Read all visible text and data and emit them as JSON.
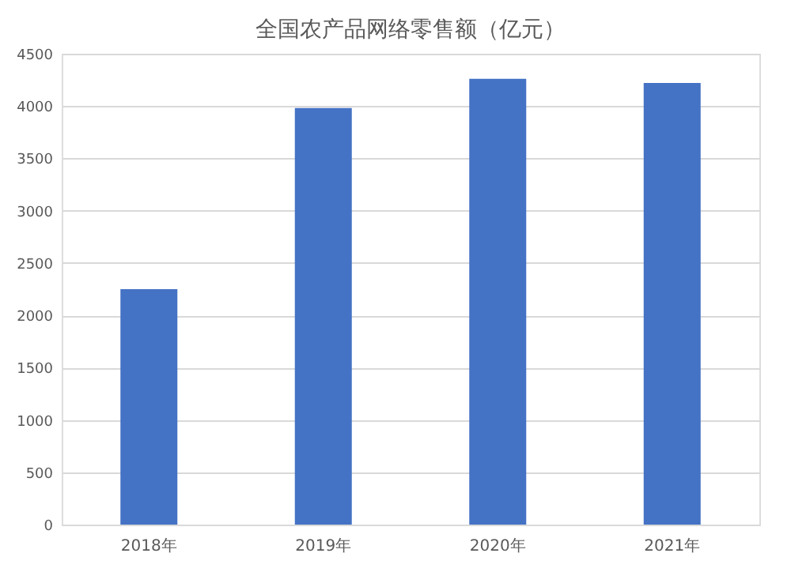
{
  "chart_data": {
    "type": "bar",
    "title": "全国农产品网络零售额（亿元）",
    "categories": [
      "2018年",
      "2019年",
      "2020年",
      "2021年"
    ],
    "values": [
      2250,
      3980,
      4260,
      4220
    ],
    "color": "#4472c4",
    "ylim": [
      0,
      4500
    ],
    "yticks": [
      0,
      500,
      1000,
      1500,
      2000,
      2500,
      3000,
      3500,
      4000,
      4500
    ],
    "grid": "y"
  }
}
